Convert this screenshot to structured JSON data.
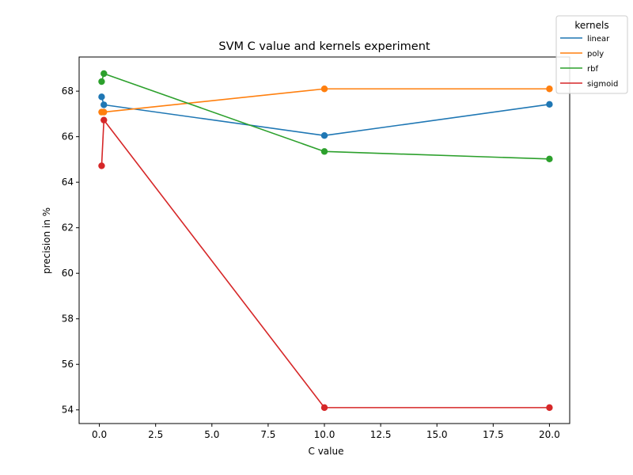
{
  "chart_data": {
    "type": "line",
    "title": "SVM C value and kernels experiment",
    "xlabel": "C value",
    "ylabel": "precision in %",
    "xlim": [
      -0.9,
      20.9
    ],
    "ylim": [
      53.4,
      69.5
    ],
    "xticks": [
      0.0,
      2.5,
      5.0,
      7.5,
      10.0,
      12.5,
      15.0,
      17.5,
      20.0
    ],
    "xtick_labels": [
      "0.0",
      "2.5",
      "5.0",
      "7.5",
      "10.0",
      "12.5",
      "15.0",
      "17.5",
      "20.0"
    ],
    "yticks": [
      54,
      56,
      58,
      60,
      62,
      64,
      66,
      68
    ],
    "ytick_labels": [
      "54",
      "56",
      "58",
      "60",
      "62",
      "64",
      "66",
      "68"
    ],
    "grid": false,
    "legend": {
      "title": "kernels",
      "placement": "upper right, outside plot"
    },
    "series": [
      {
        "name": "linear",
        "color": "#1f77b4",
        "x": [
          0.1,
          0.2,
          10,
          20
        ],
        "y": [
          67.75,
          67.4,
          66.05,
          67.42
        ]
      },
      {
        "name": "poly",
        "color": "#ff7f0e",
        "x": [
          0.1,
          0.2,
          10,
          20
        ],
        "y": [
          67.08,
          67.08,
          68.1,
          68.1
        ]
      },
      {
        "name": "rbf",
        "color": "#2ca02c",
        "x": [
          0.1,
          0.2,
          10,
          20
        ],
        "y": [
          68.42,
          68.77,
          65.35,
          65.02
        ]
      },
      {
        "name": "sigmoid",
        "color": "#d62728",
        "x": [
          0.1,
          0.2,
          10,
          20
        ],
        "y": [
          64.72,
          66.73,
          54.1,
          54.1
        ]
      }
    ]
  }
}
